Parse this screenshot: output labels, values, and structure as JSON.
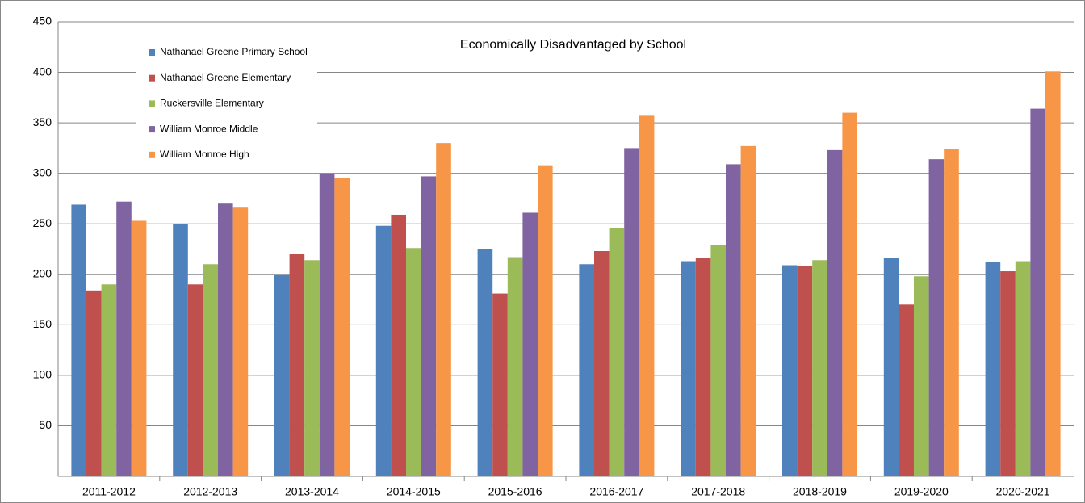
{
  "chart_data": {
    "type": "bar",
    "title": "Economically Disadvantaged by School",
    "categories": [
      "2011-2012",
      "2012-2013",
      "2013-2014",
      "2014-2015",
      "2015-2016",
      "2016-2017",
      "2017-2018",
      "2018-2019",
      "2019-2020",
      "2020-2021"
    ],
    "series": [
      {
        "name": "Nathanael Greene Primary School",
        "color": "#4f81bd",
        "values": [
          269,
          250,
          200,
          248,
          225,
          210,
          213,
          209,
          216,
          212
        ]
      },
      {
        "name": "Nathanael Greene Elementary",
        "color": "#c0504d",
        "values": [
          184,
          190,
          220,
          259,
          181,
          223,
          216,
          208,
          170,
          203
        ]
      },
      {
        "name": "Ruckersville Elementary",
        "color": "#9bbb59",
        "values": [
          190,
          210,
          214,
          226,
          217,
          246,
          229,
          214,
          198,
          213
        ]
      },
      {
        "name": "William Monroe Middle",
        "color": "#8064a2",
        "values": [
          272,
          270,
          300,
          297,
          261,
          325,
          309,
          323,
          314,
          364
        ]
      },
      {
        "name": "William Monroe High",
        "color": "#f79646",
        "values": [
          253,
          266,
          295,
          330,
          308,
          357,
          327,
          360,
          324,
          401
        ]
      }
    ],
    "ylim": [
      0,
      450
    ],
    "yticks": [
      50,
      100,
      150,
      200,
      250,
      300,
      350,
      400,
      450
    ],
    "grid": true
  }
}
